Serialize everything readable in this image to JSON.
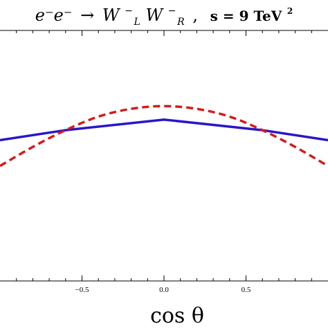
{
  "chart_data": {
    "type": "line",
    "title": {
      "lhs": "e⁻e⁻",
      "arrow": "→",
      "w1": "W",
      "w1_sup": "−",
      "w1_sub": "L",
      "w2": "W",
      "w2_sup": "−",
      "w2_sub": "R",
      "comma": ",",
      "energy_bold": "s = 9 TeV",
      "energy_sup": "2"
    },
    "xlabel": "cos θ",
    "ylabel": "",
    "xlim": [
      -1.0,
      1.0
    ],
    "ylim": [
      0.0,
      1.0
    ],
    "x_ticks": [
      -0.5,
      0.0,
      0.5
    ],
    "x_tick_labels": [
      "−0.5",
      "0.0",
      "0.5"
    ],
    "grid": false,
    "series": [
      {
        "style": "solid",
        "color": "#2a16c8",
        "x": [
          -1.0,
          -0.6,
          0.0,
          0.6,
          1.0
        ],
        "y": [
          0.562,
          0.602,
          0.644,
          0.602,
          0.562
        ]
      },
      {
        "style": "dashed",
        "color": "#d71a1a",
        "x": [
          -1.0,
          -0.8,
          -0.6,
          -0.4,
          -0.2,
          0.0,
          0.2,
          0.4,
          0.6,
          0.8,
          1.0
        ],
        "y": [
          0.459,
          0.535,
          0.602,
          0.656,
          0.687,
          0.698,
          0.687,
          0.656,
          0.602,
          0.535,
          0.459
        ]
      }
    ]
  }
}
